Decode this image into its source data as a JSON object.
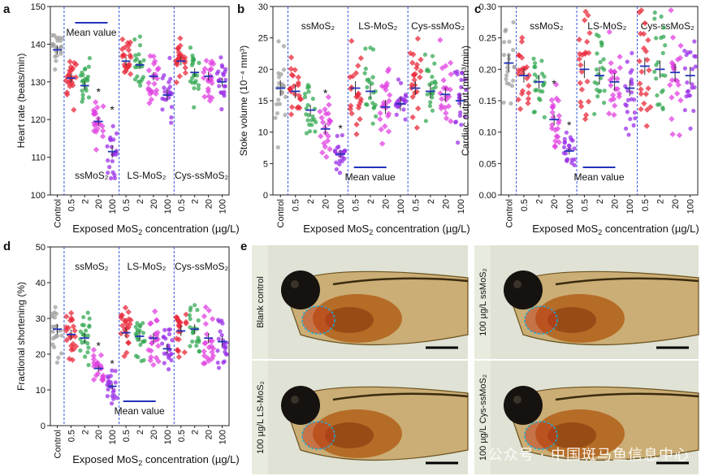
{
  "figure": {
    "x_axis_title": "Exposed MoS",
    "x_axis_title_sub": "2",
    "x_axis_title_tail": " concentration (µg/L)",
    "mean_value_label": "Mean value",
    "significance_mark": "*"
  },
  "colors": {
    "control": "#a0a0a0",
    "ssMoS2": [
      "#e8283a",
      "#34a853",
      "#e040e0",
      "#9b30e8"
    ],
    "LS-MoS2": [
      "#e8283a",
      "#34a853",
      "#e040e0",
      "#9b30e8"
    ],
    "Cys-ssMoS2": [
      "#e8283a",
      "#34a853",
      "#e040e0",
      "#9b30e8"
    ],
    "mean_line": "#2233bb",
    "divider": "#3355dd"
  },
  "chart_data": [
    {
      "panel": "a",
      "type": "scatter",
      "ylabel": "Heart rate (beats/min)",
      "ylim": [
        100,
        150
      ],
      "yticks": [
        100,
        110,
        120,
        130,
        140,
        150
      ],
      "categories": [
        "Control",
        "0.5",
        "2",
        "20",
        "100",
        "0.5",
        "2",
        "20",
        "100",
        "0.5",
        "2",
        "20",
        "100"
      ],
      "groups": [
        "ssMoS2",
        "LS-MoS2",
        "Cys-ssMoS2"
      ],
      "group_label_position": "bottom",
      "means": [
        138.5,
        131,
        129,
        119.5,
        111.5,
        135.5,
        134.5,
        131.5,
        126.5,
        135.5,
        132.5,
        131.5,
        130
      ],
      "spreads": [
        4,
        4,
        4,
        4,
        6,
        4,
        4,
        4,
        5,
        4,
        4,
        4,
        4
      ],
      "significant": [
        false,
        false,
        false,
        true,
        true,
        false,
        false,
        false,
        false,
        false,
        false,
        false,
        false
      ],
      "mean_value_position": "top-left"
    },
    {
      "panel": "b",
      "type": "scatter",
      "ylabel": "Stoke volume (10⁻⁴ mm³)",
      "ylim": [
        0,
        30
      ],
      "yticks": [
        0,
        5,
        10,
        15,
        20,
        25,
        30
      ],
      "categories": [
        "Control",
        "0.5",
        "2",
        "20",
        "100",
        "0.5",
        "2",
        "20",
        "100",
        "0.5",
        "2",
        "20",
        "100"
      ],
      "groups": [
        "ssMoS2",
        "LS-MoS2",
        "Cys-ssMoS2"
      ],
      "group_label_position": "top",
      "means": [
        17,
        16.5,
        13.5,
        10.5,
        6.5,
        17,
        16.5,
        14,
        14.5,
        17,
        16.5,
        16,
        15
      ],
      "spreads": [
        4.5,
        4,
        3,
        3,
        2,
        4,
        4,
        4,
        4,
        4,
        4,
        4,
        4
      ],
      "significant": [
        false,
        false,
        false,
        true,
        true,
        false,
        false,
        false,
        false,
        false,
        false,
        false,
        false
      ],
      "mean_value_position": "bottom"
    },
    {
      "panel": "c",
      "type": "scatter",
      "ylabel": "Cardiac output (mm³/min)",
      "ylim": [
        0,
        0.3
      ],
      "yticks": [
        0,
        0.05,
        0.1,
        0.15,
        0.2,
        0.25,
        0.3
      ],
      "categories": [
        "Control",
        "0.5",
        "2",
        "20",
        "100",
        "0.5",
        "2",
        "20",
        "100",
        "0.5",
        "2",
        "20",
        "100"
      ],
      "groups": [
        "ssMoS2",
        "LS-MoS2",
        "Cys-ssMoS2"
      ],
      "group_label_position": "top",
      "means": [
        0.21,
        0.19,
        0.18,
        0.12,
        0.07,
        0.2,
        0.19,
        0.18,
        0.17,
        0.205,
        0.2,
        0.195,
        0.19
      ],
      "spreads": [
        0.05,
        0.04,
        0.04,
        0.03,
        0.02,
        0.05,
        0.05,
        0.05,
        0.045,
        0.05,
        0.05,
        0.05,
        0.05
      ],
      "significant": [
        false,
        false,
        false,
        true,
        true,
        false,
        false,
        false,
        false,
        false,
        false,
        false,
        false
      ],
      "mean_value_position": "bottom"
    },
    {
      "panel": "d",
      "type": "scatter",
      "ylabel": "Fractional shortening (%)",
      "ylim": [
        0,
        50
      ],
      "yticks": [
        0,
        10,
        20,
        30,
        40,
        50
      ],
      "categories": [
        "Control",
        "0.5",
        "2",
        "20",
        "100",
        "0.5",
        "2",
        "20",
        "100",
        "0.5",
        "2",
        "20",
        "100"
      ],
      "groups": [
        "ssMoS2",
        "LS-MoS2",
        "Cys-ssMoS2"
      ],
      "group_label_position": "top",
      "means": [
        27,
        25.5,
        24.5,
        16,
        11,
        26,
        25,
        24.5,
        21.5,
        26.5,
        27,
        24.5,
        23.5
      ],
      "spreads": [
        5,
        5,
        5,
        3,
        3,
        5,
        5,
        5,
        5,
        5,
        5,
        5,
        5
      ],
      "significant": [
        false,
        false,
        false,
        true,
        true,
        false,
        false,
        false,
        false,
        false,
        false,
        false,
        false
      ],
      "mean_value_position": "bottom"
    }
  ],
  "panel_e": {
    "label": "e",
    "photos": [
      {
        "label": "Blank control"
      },
      {
        "label": "100 µg/L ssMoS₂"
      },
      {
        "label": "100 µg/L LS-MoS₂"
      },
      {
        "label": "100 µg/L Cys-ssMoS₂"
      }
    ],
    "watermark": "公众号 · 中国斑马鱼信息中心"
  }
}
